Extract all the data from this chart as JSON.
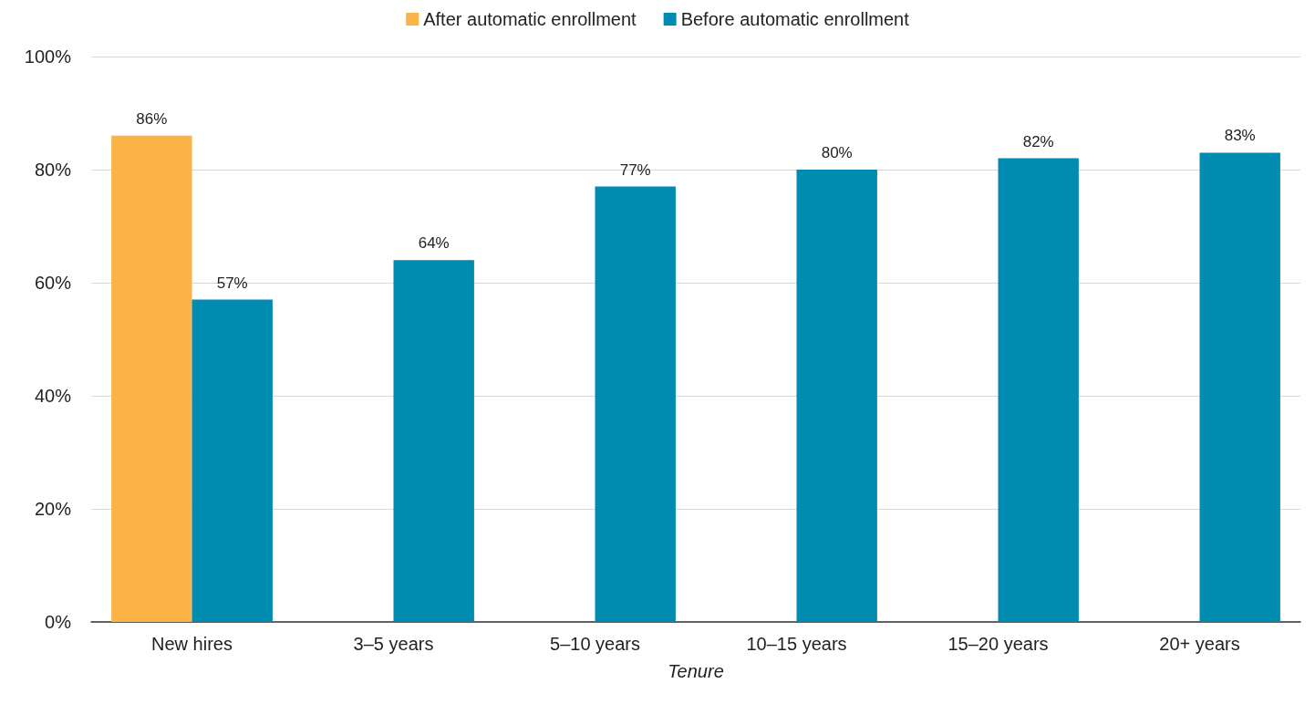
{
  "chart_data": {
    "type": "bar",
    "xlabel": "Tenure",
    "categories": [
      "New hires",
      "3–5 years",
      "5–10 years",
      "10–15 years",
      "15–20 years",
      "20+ years"
    ],
    "series": [
      {
        "name": "After automatic enrollment",
        "color": "#fbb247",
        "values": [
          86,
          null,
          null,
          null,
          null,
          null
        ],
        "value_labels": [
          "86%",
          null,
          null,
          null,
          null,
          null
        ]
      },
      {
        "name": "Before automatic enrollment",
        "color": "#008cb0",
        "values": [
          57,
          64,
          77,
          80,
          82,
          83
        ],
        "value_labels": [
          "57%",
          "64%",
          "77%",
          "80%",
          "82%",
          "83%"
        ]
      }
    ],
    "ylim": [
      0,
      100
    ],
    "yticks": [
      {
        "value": 0,
        "label": "0%"
      },
      {
        "value": 20,
        "label": "20%"
      },
      {
        "value": 40,
        "label": "40%"
      },
      {
        "value": 60,
        "label": "60%"
      },
      {
        "value": 80,
        "label": "80%"
      },
      {
        "value": 100,
        "label": "100%"
      }
    ],
    "grid": "y",
    "legend": "top"
  }
}
